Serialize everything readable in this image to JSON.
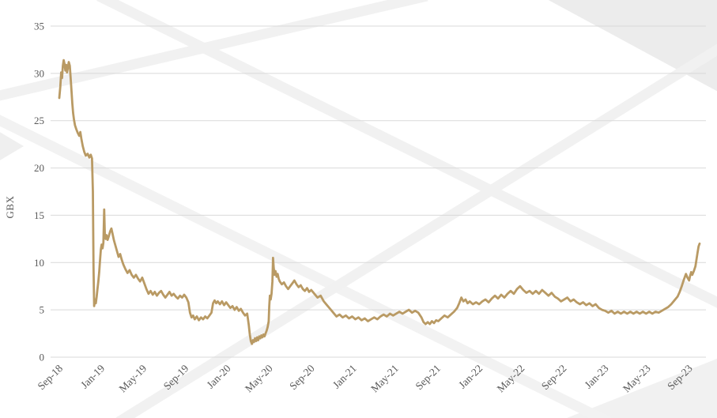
{
  "chart_data": {
    "type": "line",
    "title": "",
    "xlabel": "",
    "ylabel": "GBX",
    "x_unit": "months since Sep-2018",
    "ylim": [
      0,
      35
    ],
    "xlim_months": [
      0,
      61
    ],
    "grid": "horizontal",
    "legend": "none",
    "line_color": "#b99a64",
    "grid_color": "#d9d9d9",
    "label_color": "#595959",
    "y_ticks": [
      0,
      5,
      10,
      15,
      20,
      25,
      30,
      35
    ],
    "x_tick_labels": [
      "Sep-18",
      "Jan-19",
      "May-19",
      "Sep-19",
      "Jan-20",
      "May-20",
      "Sep-20",
      "Jan-21",
      "May-21",
      "Sep-21",
      "Jan-22",
      "May-22",
      "Sep-22",
      "Jan-23",
      "May-23",
      "Sep-23"
    ],
    "x_tick_positions_months": [
      0,
      4,
      8,
      12,
      16,
      20,
      24,
      28,
      32,
      36,
      40,
      44,
      48,
      52,
      56,
      60
    ],
    "points": [
      [
        0,
        27.4
      ],
      [
        0.1,
        28.6
      ],
      [
        0.18,
        30.1
      ],
      [
        0.26,
        29.5
      ],
      [
        0.34,
        30.8
      ],
      [
        0.42,
        31.4
      ],
      [
        0.5,
        31.0
      ],
      [
        0.58,
        30.3
      ],
      [
        0.66,
        30.9
      ],
      [
        0.74,
        30.1
      ],
      [
        0.82,
        30.6
      ],
      [
        0.9,
        31.2
      ],
      [
        1.0,
        30.8
      ],
      [
        1.08,
        29.6
      ],
      [
        1.16,
        28.2
      ],
      [
        1.24,
        26.8
      ],
      [
        1.32,
        25.8
      ],
      [
        1.4,
        25.1
      ],
      [
        1.5,
        24.5
      ],
      [
        1.62,
        24.1
      ],
      [
        1.76,
        23.7
      ],
      [
        1.9,
        23.4
      ],
      [
        2.0,
        23.8
      ],
      [
        2.1,
        23.1
      ],
      [
        2.24,
        22.3
      ],
      [
        2.38,
        21.7
      ],
      [
        2.52,
        21.3
      ],
      [
        2.7,
        21.5
      ],
      [
        2.86,
        21.1
      ],
      [
        3.0,
        21.4
      ],
      [
        3.12,
        21.0
      ],
      [
        3.2,
        17.5
      ],
      [
        3.26,
        9.5
      ],
      [
        3.32,
        5.4
      ],
      [
        3.4,
        6.1
      ],
      [
        3.48,
        5.7
      ],
      [
        3.56,
        6.4
      ],
      [
        3.64,
        7.2
      ],
      [
        3.72,
        8.0
      ],
      [
        3.8,
        9.0
      ],
      [
        3.88,
        10.2
      ],
      [
        3.96,
        11.4
      ],
      [
        4.04,
        11.9
      ],
      [
        4.12,
        11.5
      ],
      [
        4.2,
        12.1
      ],
      [
        4.28,
        15.6
      ],
      [
        4.34,
        13.0
      ],
      [
        4.42,
        12.5
      ],
      [
        4.5,
        12.9
      ],
      [
        4.6,
        12.4
      ],
      [
        4.72,
        12.8
      ],
      [
        4.84,
        13.3
      ],
      [
        4.96,
        13.6
      ],
      [
        5.08,
        13.0
      ],
      [
        5.2,
        12.4
      ],
      [
        5.35,
        11.8
      ],
      [
        5.5,
        11.2
      ],
      [
        5.65,
        10.6
      ],
      [
        5.8,
        10.9
      ],
      [
        5.95,
        10.3
      ],
      [
        6.1,
        9.8
      ],
      [
        6.3,
        9.3
      ],
      [
        6.5,
        8.9
      ],
      [
        6.7,
        9.2
      ],
      [
        6.9,
        8.7
      ],
      [
        7.1,
        8.4
      ],
      [
        7.3,
        8.7
      ],
      [
        7.5,
        8.3
      ],
      [
        7.7,
        8.0
      ],
      [
        7.9,
        8.4
      ],
      [
        8.1,
        7.8
      ],
      [
        8.3,
        7.2
      ],
      [
        8.5,
        6.7
      ],
      [
        8.7,
        7.0
      ],
      [
        8.9,
        6.6
      ],
      [
        9.1,
        6.9
      ],
      [
        9.3,
        6.5
      ],
      [
        9.5,
        6.8
      ],
      [
        9.7,
        7.0
      ],
      [
        9.9,
        6.6
      ],
      [
        10.1,
        6.3
      ],
      [
        10.3,
        6.6
      ],
      [
        10.5,
        6.9
      ],
      [
        10.7,
        6.5
      ],
      [
        10.9,
        6.7
      ],
      [
        11.1,
        6.4
      ],
      [
        11.3,
        6.2
      ],
      [
        11.5,
        6.5
      ],
      [
        11.7,
        6.3
      ],
      [
        11.9,
        6.6
      ],
      [
        12.1,
        6.3
      ],
      [
        12.3,
        5.8
      ],
      [
        12.45,
        4.7
      ],
      [
        12.6,
        4.2
      ],
      [
        12.75,
        4.4
      ],
      [
        12.9,
        4.0
      ],
      [
        13.1,
        4.3
      ],
      [
        13.3,
        3.9
      ],
      [
        13.5,
        4.2
      ],
      [
        13.7,
        4.0
      ],
      [
        13.9,
        4.3
      ],
      [
        14.1,
        4.1
      ],
      [
        14.3,
        4.4
      ],
      [
        14.5,
        4.7
      ],
      [
        14.65,
        5.7
      ],
      [
        14.8,
        6.0
      ],
      [
        14.95,
        5.7
      ],
      [
        15.1,
        5.9
      ],
      [
        15.3,
        5.6
      ],
      [
        15.5,
        5.9
      ],
      [
        15.7,
        5.5
      ],
      [
        15.9,
        5.8
      ],
      [
        16.1,
        5.5
      ],
      [
        16.3,
        5.2
      ],
      [
        16.5,
        5.4
      ],
      [
        16.7,
        5.0
      ],
      [
        16.9,
        5.3
      ],
      [
        17.1,
        4.9
      ],
      [
        17.3,
        5.1
      ],
      [
        17.5,
        4.7
      ],
      [
        17.7,
        4.4
      ],
      [
        17.9,
        4.6
      ],
      [
        18.05,
        3.4
      ],
      [
        18.15,
        2.4
      ],
      [
        18.25,
        1.7
      ],
      [
        18.35,
        1.4
      ],
      [
        18.45,
        1.8
      ],
      [
        18.55,
        1.6
      ],
      [
        18.65,
        2.0
      ],
      [
        18.75,
        1.7
      ],
      [
        18.85,
        2.1
      ],
      [
        18.95,
        1.8
      ],
      [
        19.05,
        2.2
      ],
      [
        19.15,
        2.0
      ],
      [
        19.25,
        2.3
      ],
      [
        19.35,
        2.1
      ],
      [
        19.45,
        2.4
      ],
      [
        19.55,
        2.2
      ],
      [
        19.65,
        2.5
      ],
      [
        19.75,
        2.8
      ],
      [
        19.85,
        3.2
      ],
      [
        19.95,
        3.8
      ],
      [
        20.0,
        5.4
      ],
      [
        20.06,
        6.5
      ],
      [
        20.14,
        6.1
      ],
      [
        20.22,
        6.7
      ],
      [
        20.3,
        8.0
      ],
      [
        20.36,
        10.5
      ],
      [
        20.42,
        9.5
      ],
      [
        20.5,
        8.7
      ],
      [
        20.6,
        9.1
      ],
      [
        20.7,
        8.5
      ],
      [
        20.8,
        8.8
      ],
      [
        20.9,
        8.3
      ],
      [
        21.0,
        8.0
      ],
      [
        21.2,
        7.7
      ],
      [
        21.4,
        7.9
      ],
      [
        21.6,
        7.5
      ],
      [
        21.8,
        7.2
      ],
      [
        22.0,
        7.5
      ],
      [
        22.2,
        7.8
      ],
      [
        22.4,
        8.1
      ],
      [
        22.6,
        7.7
      ],
      [
        22.8,
        7.4
      ],
      [
        23.0,
        7.6
      ],
      [
        23.2,
        7.2
      ],
      [
        23.4,
        7.0
      ],
      [
        23.6,
        7.3
      ],
      [
        23.8,
        6.9
      ],
      [
        24.0,
        7.1
      ],
      [
        24.3,
        6.7
      ],
      [
        24.6,
        6.3
      ],
      [
        24.9,
        6.5
      ],
      [
        25.2,
        5.9
      ],
      [
        25.5,
        5.5
      ],
      [
        25.8,
        5.1
      ],
      [
        26.1,
        4.7
      ],
      [
        26.4,
        4.3
      ],
      [
        26.7,
        4.5
      ],
      [
        27.0,
        4.2
      ],
      [
        27.3,
        4.4
      ],
      [
        27.6,
        4.1
      ],
      [
        27.9,
        4.3
      ],
      [
        28.2,
        4.0
      ],
      [
        28.5,
        4.2
      ],
      [
        28.8,
        3.9
      ],
      [
        29.1,
        4.1
      ],
      [
        29.4,
        3.8
      ],
      [
        29.7,
        4.0
      ],
      [
        30.0,
        4.2
      ],
      [
        30.3,
        4.0
      ],
      [
        30.6,
        4.3
      ],
      [
        30.9,
        4.5
      ],
      [
        31.2,
        4.3
      ],
      [
        31.5,
        4.6
      ],
      [
        31.8,
        4.4
      ],
      [
        32.1,
        4.6
      ],
      [
        32.4,
        4.8
      ],
      [
        32.7,
        4.6
      ],
      [
        33.0,
        4.8
      ],
      [
        33.3,
        5.0
      ],
      [
        33.6,
        4.7
      ],
      [
        33.9,
        4.9
      ],
      [
        34.2,
        4.7
      ],
      [
        34.5,
        4.2
      ],
      [
        34.7,
        3.7
      ],
      [
        34.9,
        3.5
      ],
      [
        35.1,
        3.7
      ],
      [
        35.3,
        3.5
      ],
      [
        35.5,
        3.8
      ],
      [
        35.7,
        3.6
      ],
      [
        35.9,
        3.9
      ],
      [
        36.1,
        3.8
      ],
      [
        36.4,
        4.1
      ],
      [
        36.7,
        4.4
      ],
      [
        37.0,
        4.2
      ],
      [
        37.3,
        4.5
      ],
      [
        37.6,
        4.8
      ],
      [
        37.9,
        5.2
      ],
      [
        38.1,
        5.7
      ],
      [
        38.3,
        6.3
      ],
      [
        38.5,
        5.9
      ],
      [
        38.7,
        6.1
      ],
      [
        38.9,
        5.7
      ],
      [
        39.1,
        5.9
      ],
      [
        39.4,
        5.6
      ],
      [
        39.7,
        5.8
      ],
      [
        40.0,
        5.6
      ],
      [
        40.3,
        5.9
      ],
      [
        40.6,
        6.1
      ],
      [
        40.9,
        5.8
      ],
      [
        41.2,
        6.2
      ],
      [
        41.5,
        6.5
      ],
      [
        41.8,
        6.2
      ],
      [
        42.1,
        6.6
      ],
      [
        42.4,
        6.3
      ],
      [
        42.7,
        6.7
      ],
      [
        43.0,
        7.0
      ],
      [
        43.3,
        6.7
      ],
      [
        43.6,
        7.2
      ],
      [
        43.9,
        7.5
      ],
      [
        44.2,
        7.1
      ],
      [
        44.5,
        6.8
      ],
      [
        44.8,
        7.0
      ],
      [
        45.1,
        6.7
      ],
      [
        45.4,
        7.0
      ],
      [
        45.7,
        6.7
      ],
      [
        46.0,
        7.1
      ],
      [
        46.3,
        6.8
      ],
      [
        46.6,
        6.5
      ],
      [
        46.9,
        6.8
      ],
      [
        47.2,
        6.4
      ],
      [
        47.5,
        6.2
      ],
      [
        47.8,
        5.9
      ],
      [
        48.1,
        6.1
      ],
      [
        48.4,
        6.3
      ],
      [
        48.7,
        5.9
      ],
      [
        49.0,
        6.1
      ],
      [
        49.3,
        5.8
      ],
      [
        49.6,
        5.6
      ],
      [
        49.9,
        5.8
      ],
      [
        50.2,
        5.5
      ],
      [
        50.5,
        5.7
      ],
      [
        50.8,
        5.4
      ],
      [
        51.1,
        5.6
      ],
      [
        51.4,
        5.2
      ],
      [
        51.7,
        5.0
      ],
      [
        52.0,
        4.9
      ],
      [
        52.3,
        4.7
      ],
      [
        52.6,
        4.9
      ],
      [
        52.9,
        4.6
      ],
      [
        53.2,
        4.8
      ],
      [
        53.5,
        4.6
      ],
      [
        53.8,
        4.8
      ],
      [
        54.1,
        4.6
      ],
      [
        54.4,
        4.8
      ],
      [
        54.7,
        4.6
      ],
      [
        55.0,
        4.8
      ],
      [
        55.3,
        4.6
      ],
      [
        55.6,
        4.8
      ],
      [
        55.9,
        4.6
      ],
      [
        56.2,
        4.8
      ],
      [
        56.5,
        4.6
      ],
      [
        56.8,
        4.8
      ],
      [
        57.1,
        4.7
      ],
      [
        57.4,
        4.9
      ],
      [
        57.7,
        5.1
      ],
      [
        58.0,
        5.3
      ],
      [
        58.3,
        5.6
      ],
      [
        58.6,
        6.0
      ],
      [
        58.9,
        6.4
      ],
      [
        59.1,
        6.9
      ],
      [
        59.3,
        7.5
      ],
      [
        59.5,
        8.2
      ],
      [
        59.7,
        8.8
      ],
      [
        59.85,
        8.4
      ],
      [
        60.0,
        8.1
      ],
      [
        60.1,
        8.6
      ],
      [
        60.2,
        9.0
      ],
      [
        60.3,
        8.7
      ],
      [
        60.45,
        9.1
      ],
      [
        60.6,
        9.6
      ],
      [
        60.7,
        10.3
      ],
      [
        60.8,
        11.0
      ],
      [
        60.9,
        11.7
      ],
      [
        61.0,
        12.0
      ]
    ]
  },
  "watermark": {
    "line_color": "#f1f1f1",
    "fill_color": "#ececec"
  }
}
